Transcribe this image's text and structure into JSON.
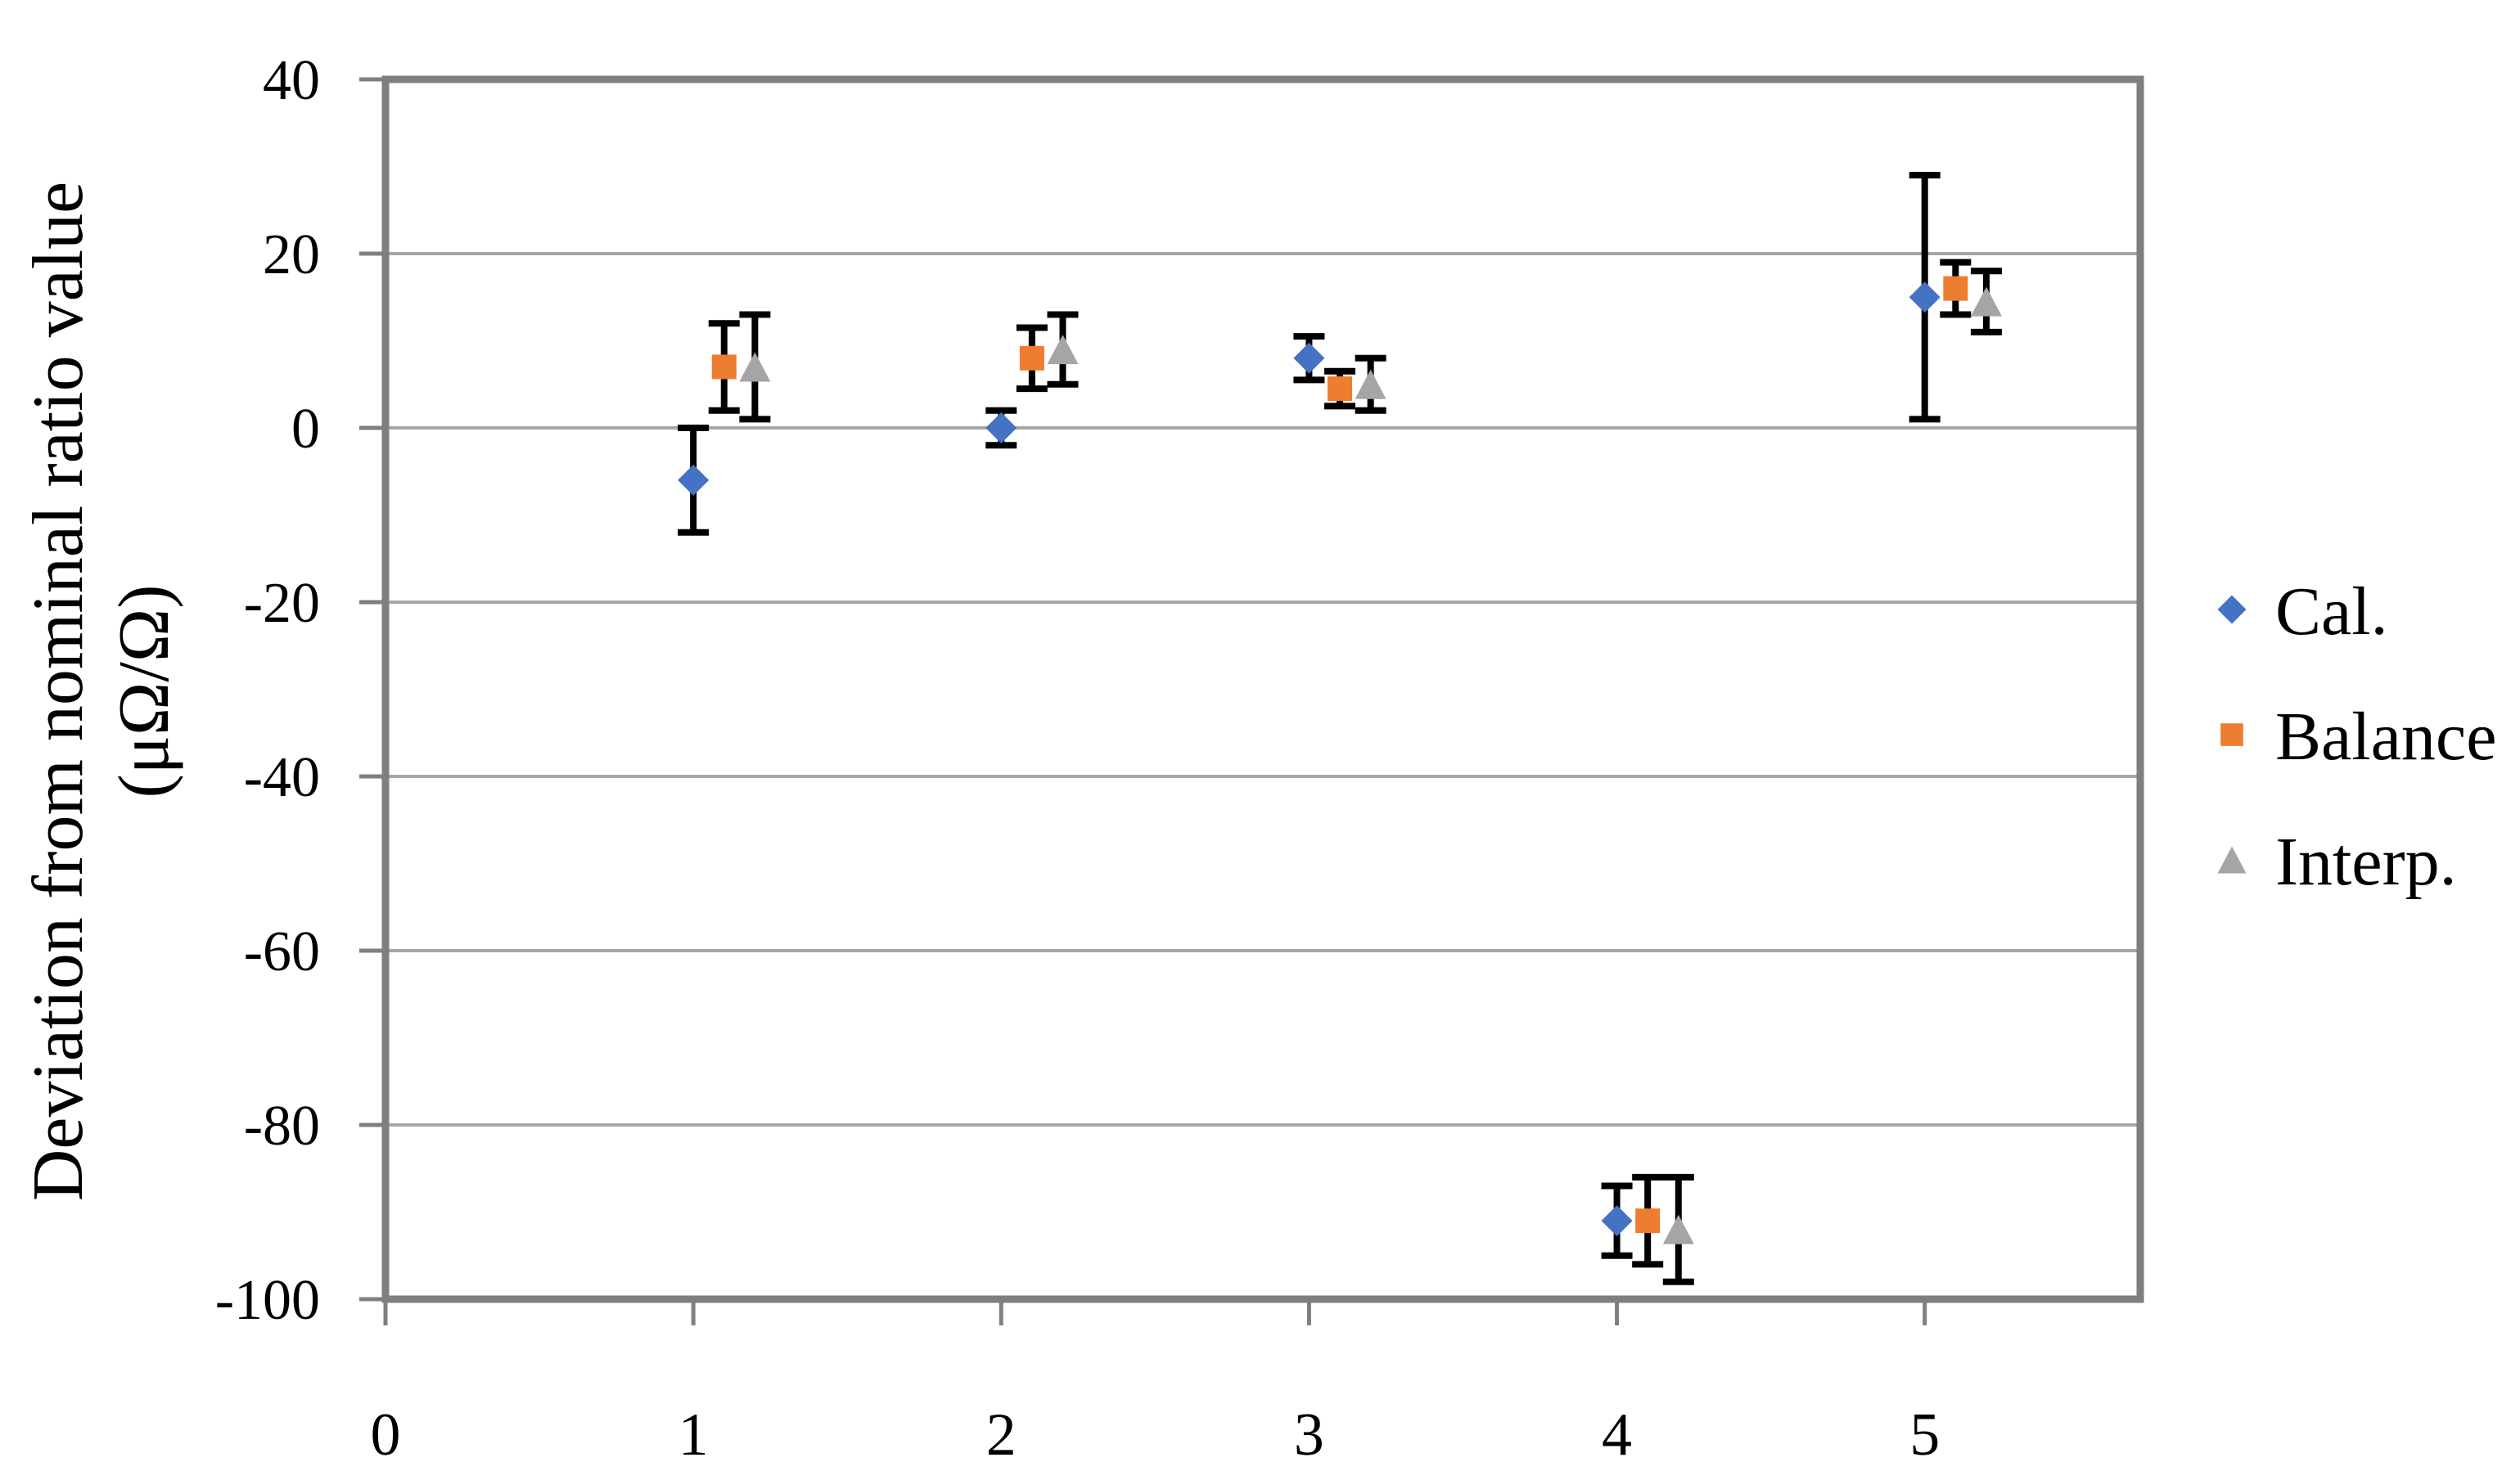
{
  "figure": {
    "y_axis_title_line1": "Deviation from nominal ratio value",
    "y_axis_title_line2": "(μΩ/Ω)"
  },
  "chart_data": {
    "type": "scatter",
    "title": "",
    "xlabel": "",
    "ylabel": "Deviation from nominal ratio value (μΩ/Ω)",
    "xlim": [
      0,
      5.7
    ],
    "ylim": [
      -100,
      40
    ],
    "x_ticks": [
      0,
      1,
      2,
      3,
      4,
      5
    ],
    "y_ticks": [
      40,
      20,
      0,
      -20,
      -40,
      -60,
      -80,
      -100
    ],
    "grid": "horizontal",
    "legend_position": "right-middle",
    "colors": {
      "gridline": "#A6A6A6",
      "plot_border": "#7F7F7F",
      "error_bar": "#000000",
      "text": "#000000"
    },
    "series": [
      {
        "name": "Cal.",
        "marker": "diamond",
        "color": "#4472C4",
        "x_offset": 0.0,
        "x": [
          1,
          2,
          3,
          4,
          5
        ],
        "y": [
          -6,
          0,
          8,
          -91,
          15
        ],
        "yerr": [
          6,
          2,
          2.5,
          4,
          14
        ]
      },
      {
        "name": "Balance",
        "marker": "square",
        "color": "#ED7D31",
        "x_offset": 0.1,
        "x": [
          1,
          2,
          3,
          4,
          5
        ],
        "y": [
          7,
          8,
          4.5,
          -91,
          16
        ],
        "yerr": [
          5,
          3.5,
          2,
          5,
          3
        ]
      },
      {
        "name": "Interp.",
        "marker": "triangle",
        "color": "#A5A5A5",
        "x_offset": 0.2,
        "x": [
          1,
          2,
          3,
          4,
          5
        ],
        "y": [
          7,
          9,
          5,
          -92,
          14.5
        ],
        "yerr": [
          6,
          4,
          3,
          6,
          3.5
        ]
      }
    ]
  }
}
